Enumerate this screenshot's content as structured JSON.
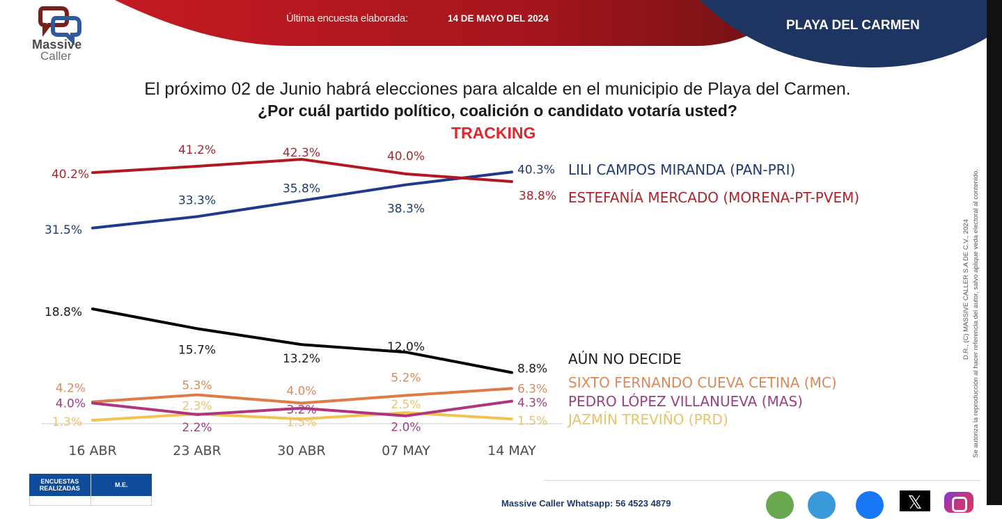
{
  "header": {
    "brand_line1": "Massive",
    "brand_line2": "Caller",
    "survey_label": "Última encuesta elaborada:",
    "survey_date": "14 DE MAYO DEL 2024",
    "city": "PLAYA DEL CARMEN",
    "colors": {
      "red": "#b5141b",
      "navy": "#1e3461"
    }
  },
  "titles": {
    "line1": "El próximo 02 de Junio habrá elecciones para alcalde en el municipio de  Playa del Carmen.",
    "line2": "¿Por cuál partido político, coalición o candidato votaría usted?",
    "line3": "TRACKING"
  },
  "chart_data": {
    "type": "line",
    "title": "TRACKING",
    "x": [
      "16 ABR",
      "23 ABR",
      "30 ABR",
      "07 MAY",
      "14 MAY"
    ],
    "xlabel": "",
    "ylabel": "",
    "unit": "%",
    "ylim": [
      0,
      45
    ],
    "grid": false,
    "legend": "right (end-of-line labels)",
    "series": [
      {
        "name": "LILI CAMPOS MIRANDA (PAN-PRI)",
        "color": "#1f3a8a",
        "label_color": "#1f3a6e",
        "values": [
          31.5,
          33.3,
          35.8,
          38.3,
          40.3
        ]
      },
      {
        "name": "ESTEFANÍA MERCADO (MORENA-PT-PVEM)",
        "color": "#b3171f",
        "label_color": "#a8262c",
        "values": [
          40.2,
          41.2,
          42.3,
          40.0,
          38.8
        ]
      },
      {
        "name": "AÚN NO DECIDE",
        "color": "#000000",
        "label_color": "#1a1a1a",
        "values": [
          18.8,
          15.7,
          13.2,
          12.0,
          8.8
        ]
      },
      {
        "name": "SIXTO FERNANDO CUEVA CETINA (MC)",
        "color": "#e07b47",
        "label_color": "#d98a5c",
        "values": [
          4.2,
          5.3,
          4.0,
          5.2,
          6.3
        ]
      },
      {
        "name": "PEDRO LÓPEZ VILLANUEVA (MAS)",
        "color": "#b0357e",
        "label_color": "#9c3f86",
        "values": [
          4.0,
          2.2,
          3.2,
          2.0,
          4.3
        ]
      },
      {
        "name": "JAZMÍN TREVIÑO (PRD)",
        "color": "#f1c452",
        "label_color": "#e8c36c",
        "values": [
          1.3,
          2.3,
          1.5,
          2.5,
          1.5
        ]
      }
    ]
  },
  "side_notice": {
    "line1": "D.R., (C) MASSIVE CALLER S.A DE C.V., 2024",
    "line2": "Se autoriza la reproducción al hacer referencia del autor, salvo aplique veda electoral al contenido."
  },
  "table": {
    "headers": [
      "ENCUESTAS REALIZADAS",
      "M.E."
    ]
  },
  "footer": {
    "text": "Massive Caller Whatsapp: 56 4523 4879",
    "social": [
      "whatsapp-icon",
      "telegram-icon",
      "facebook-icon",
      "x-icon",
      "instagram-icon"
    ]
  }
}
